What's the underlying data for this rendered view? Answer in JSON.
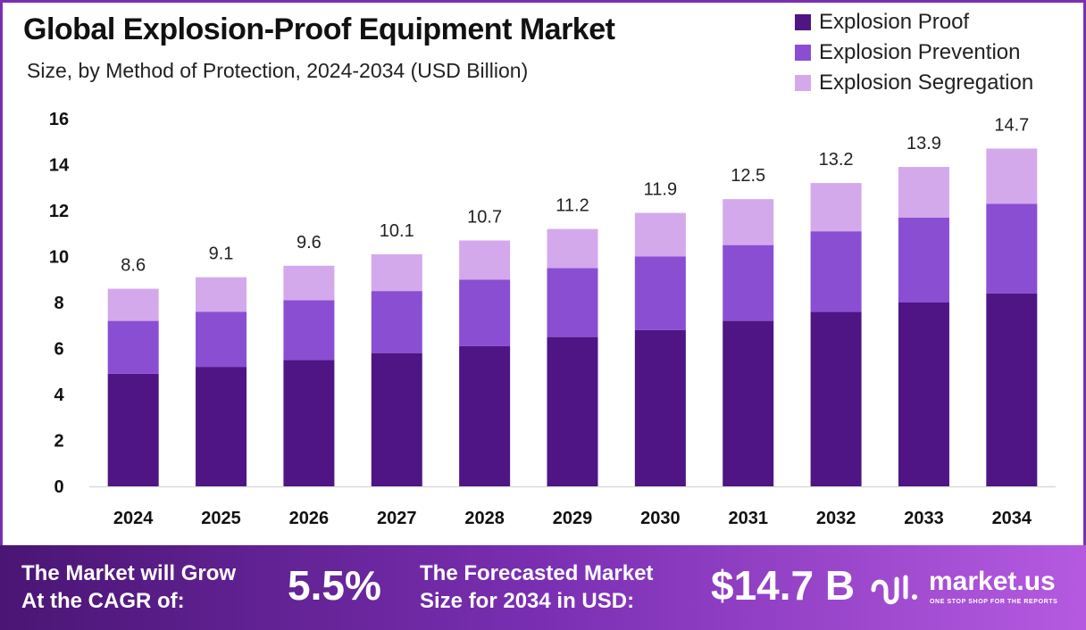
{
  "header": {
    "title": "Global Explosion-Proof Equipment Market",
    "subtitle": "Size, by Method of Protection, 2024-2034 (USD Billion)"
  },
  "legend": [
    {
      "label": "Explosion Proof",
      "color": "#4f1585"
    },
    {
      "label": "Explosion Prevention",
      "color": "#8a4ed3"
    },
    {
      "label": "Explosion Segregation",
      "color": "#d3a9ec"
    }
  ],
  "chart_data": {
    "type": "bar",
    "stacked": true,
    "categories": [
      "2024",
      "2025",
      "2026",
      "2027",
      "2028",
      "2029",
      "2030",
      "2031",
      "2032",
      "2033",
      "2034"
    ],
    "series": [
      {
        "name": "Explosion Proof",
        "color": "#4f1585",
        "values": [
          4.9,
          5.2,
          5.5,
          5.8,
          6.1,
          6.5,
          6.8,
          7.2,
          7.6,
          8.0,
          8.4
        ]
      },
      {
        "name": "Explosion Prevention",
        "color": "#8a4ed3",
        "values": [
          2.3,
          2.4,
          2.6,
          2.7,
          2.9,
          3.0,
          3.2,
          3.3,
          3.5,
          3.7,
          3.9
        ]
      },
      {
        "name": "Explosion Segregation",
        "color": "#d3a9ec",
        "values": [
          1.4,
          1.5,
          1.5,
          1.6,
          1.7,
          1.7,
          1.9,
          2.0,
          2.1,
          2.2,
          2.4
        ]
      }
    ],
    "totals": [
      "8.6",
      "9.1",
      "9.6",
      "10.1",
      "10.7",
      "11.2",
      "11.9",
      "12.5",
      "13.2",
      "13.9",
      "14.7"
    ],
    "yticks": [
      "0",
      "2",
      "4",
      "6",
      "8",
      "10",
      "12",
      "14",
      "16"
    ],
    "ylim": [
      0,
      16
    ],
    "grid": false,
    "legend_position": "top-right"
  },
  "footer": {
    "cagr_label": "The Market will Grow\nAt the CAGR of:",
    "cagr_value": "5.5%",
    "size_label": "The Forecasted Market\nSize for 2034 in USD:",
    "size_value": "$14.7 B",
    "brand_name": "market.us",
    "brand_tagline": "ONE STOP SHOP FOR THE REPORTS",
    "brand_icon": "market-us-logo-icon"
  }
}
